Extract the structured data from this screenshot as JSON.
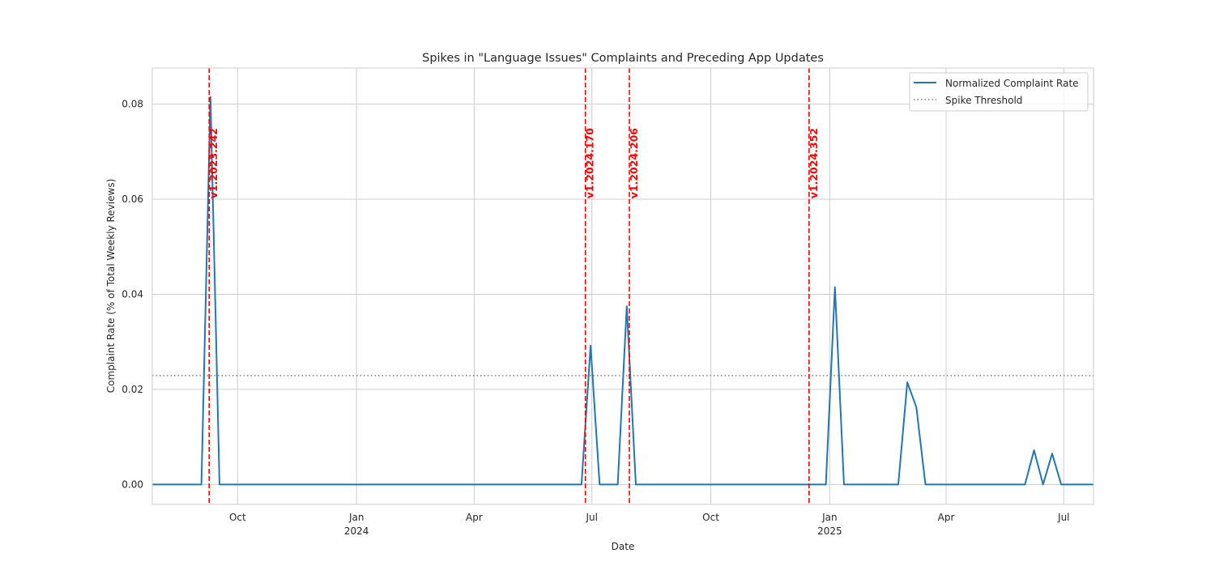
{
  "chart_data": {
    "type": "line",
    "title": "Spikes in \"Language Issues\" Complaints and Preceding App Updates",
    "xlabel": "Date",
    "ylabel": "Complaint Rate (% of Total Weekly Reviews)",
    "x_range": [
      "2023-07-27",
      "2025-07-24"
    ],
    "ylim": [
      -0.0042,
      0.0876
    ],
    "y_ticks": [
      0.0,
      0.02,
      0.04,
      0.06,
      0.08
    ],
    "y_tick_labels": [
      "0.00",
      "0.02",
      "0.04",
      "0.06",
      "0.08"
    ],
    "x_ticks": [
      {
        "date": "2023-10-01",
        "label": "Oct",
        "sublabel": ""
      },
      {
        "date": "2024-01-01",
        "label": "Jan",
        "sublabel": "2024"
      },
      {
        "date": "2024-04-01",
        "label": "Apr",
        "sublabel": ""
      },
      {
        "date": "2024-07-01",
        "label": "Jul",
        "sublabel": ""
      },
      {
        "date": "2024-10-01",
        "label": "Oct",
        "sublabel": ""
      },
      {
        "date": "2025-01-01",
        "label": "Jan",
        "sublabel": "2025"
      },
      {
        "date": "2025-04-01",
        "label": "Apr",
        "sublabel": ""
      },
      {
        "date": "2025-07-01",
        "label": "Jul",
        "sublabel": ""
      }
    ],
    "grid": true,
    "legend_position": "top-right",
    "series": [
      {
        "name": "Normalized Complaint Rate",
        "color": "#1f77b4",
        "line_style": "solid",
        "points": [
          {
            "x": "2023-07-27",
            "y": 0.0
          },
          {
            "x": "2023-09-03",
            "y": 0.0
          },
          {
            "x": "2023-09-10",
            "y": 0.0815
          },
          {
            "x": "2023-09-17",
            "y": 0.0
          },
          {
            "x": "2024-06-23",
            "y": 0.0
          },
          {
            "x": "2024-06-30",
            "y": 0.0292
          },
          {
            "x": "2024-07-07",
            "y": 0.0
          },
          {
            "x": "2024-07-21",
            "y": 0.0
          },
          {
            "x": "2024-07-28",
            "y": 0.0375
          },
          {
            "x": "2024-08-04",
            "y": 0.0
          },
          {
            "x": "2024-12-29",
            "y": 0.0
          },
          {
            "x": "2025-01-05",
            "y": 0.0415
          },
          {
            "x": "2025-01-12",
            "y": 0.0
          },
          {
            "x": "2025-02-23",
            "y": 0.0
          },
          {
            "x": "2025-03-02",
            "y": 0.0215
          },
          {
            "x": "2025-03-09",
            "y": 0.0162
          },
          {
            "x": "2025-03-16",
            "y": 0.0
          },
          {
            "x": "2025-06-01",
            "y": 0.0
          },
          {
            "x": "2025-06-08",
            "y": 0.0072
          },
          {
            "x": "2025-06-15",
            "y": 0.0
          },
          {
            "x": "2025-06-22",
            "y": 0.0065
          },
          {
            "x": "2025-06-29",
            "y": 0.0
          },
          {
            "x": "2025-07-24",
            "y": 0.0
          }
        ]
      },
      {
        "name": "Spike Threshold",
        "color": "#808080",
        "line_style": "dotted",
        "points": [
          {
            "x": "2023-07-27",
            "y": 0.0229
          },
          {
            "x": "2025-07-24",
            "y": 0.0229
          }
        ]
      }
    ],
    "annotations": [
      {
        "label": "v1.2023.242",
        "date": "2023-09-09",
        "color": "#ff0000"
      },
      {
        "label": "v1.2024.170",
        "date": "2024-06-26",
        "color": "#ff0000"
      },
      {
        "label": "v1.2024.206",
        "date": "2024-07-30",
        "color": "#ff0000"
      },
      {
        "label": "v1.2024.352",
        "date": "2024-12-16",
        "color": "#ff0000"
      }
    ]
  }
}
